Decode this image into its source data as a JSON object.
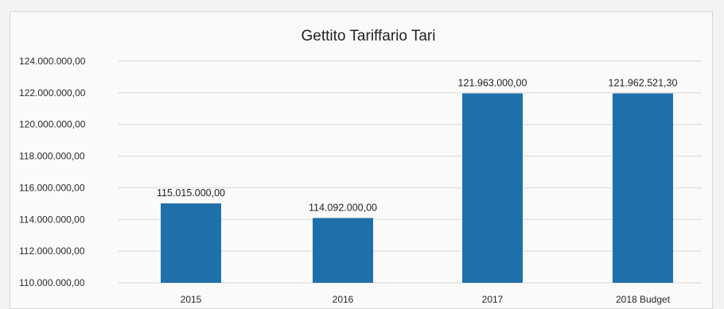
{
  "chart_data": {
    "type": "bar",
    "title": "Gettito Tariffario Tari",
    "xlabel": "",
    "ylabel": "",
    "categories": [
      "2015",
      "2016",
      "2017",
      "2018 Budget"
    ],
    "values": [
      115015000,
      114092000,
      121963000,
      121962521.3
    ],
    "data_labels": [
      "115.015.000,00",
      "114.092.000,00",
      "121.963.000,00",
      "121.962.521,30"
    ],
    "ylim": [
      110000000,
      124000000
    ],
    "yticks": [
      110000000,
      112000000,
      114000000,
      116000000,
      118000000,
      120000000,
      122000000,
      124000000
    ],
    "ytick_labels": [
      "110.000.000,00",
      "112.000.000,00",
      "114.000.000,00",
      "116.000.000,00",
      "118.000.000,00",
      "120.000.000,00",
      "122.000.000,00",
      "124.000.000,00"
    ],
    "grid": true,
    "legend": "none",
    "bar_color": "#1f6fab"
  }
}
